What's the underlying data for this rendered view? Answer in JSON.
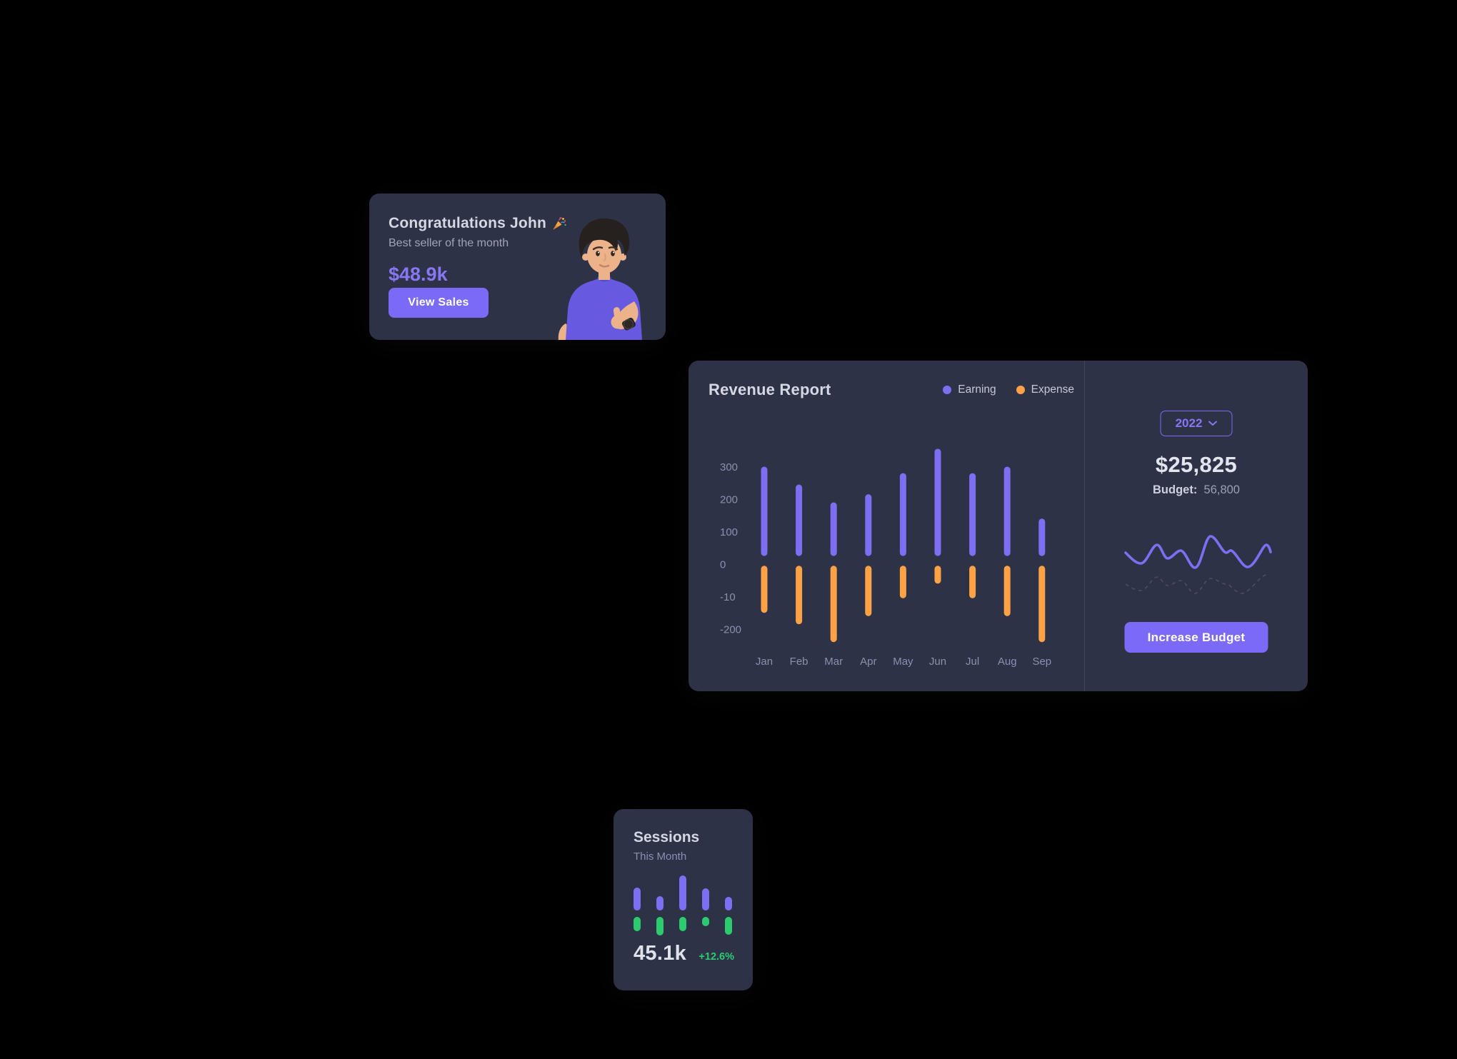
{
  "colors": {
    "background": "#000000",
    "card_bg": "#2e3247",
    "primary_purple": "#7b6af5",
    "bar_purple": "#7d6ff2",
    "bar_orange": "#ffa145",
    "green": "#2dcb70",
    "heading_text": "#d5d7e2",
    "muted_text": "#a0a4b8",
    "axis_text": "#8a90ae",
    "amount_purple": "#8877f2"
  },
  "congrats_card": {
    "title": "Congratulations John",
    "title_emoji_icon": "party-popper",
    "subtitle": "Best seller of the month",
    "amount": "$48.9k",
    "button_label": "View Sales"
  },
  "revenue_card": {
    "title": "Revenue Report",
    "legend": [
      {
        "label": "Earning",
        "color": "#7d6ff2"
      },
      {
        "label": "Expense",
        "color": "#ffa145"
      }
    ],
    "year": "2022",
    "total": "$25,825",
    "budget_label": "Budget:",
    "budget_value": "56,800",
    "button_label": "Increase Budget",
    "chart_data": {
      "type": "bar",
      "categories": [
        "Jan",
        "Feb",
        "Mar",
        "Apr",
        "May",
        "Jun",
        "Jul",
        "Aug",
        "Sep"
      ],
      "y_ticks": [
        "300",
        "200",
        "100",
        "0",
        "-10",
        "-200"
      ],
      "ylim": [
        -260,
        380
      ],
      "grid": false,
      "legend_position": "top-right",
      "series": [
        {
          "name": "Earning",
          "color": "#7d6ff2",
          "values": [
            300,
            245,
            190,
            215,
            280,
            355,
            280,
            300,
            140
          ]
        },
        {
          "name": "Expense",
          "color": "#ffa145",
          "values": [
            -150,
            -185,
            -240,
            -160,
            -105,
            -60,
            -105,
            -160,
            -240
          ]
        }
      ]
    }
  },
  "sessions_card": {
    "title": "Sessions",
    "subtitle": "This Month",
    "value": "45.1k",
    "delta": "+12.6%",
    "chart_data": {
      "type": "bar",
      "units": "relative",
      "series": [
        {
          "name": "upper",
          "color": "#7d6ff2",
          "values": [
            32,
            20,
            49,
            31,
            19
          ]
        },
        {
          "name": "lower",
          "color": "#2dcb70",
          "values": [
            20,
            26,
            20,
            13,
            25
          ]
        }
      ]
    }
  }
}
